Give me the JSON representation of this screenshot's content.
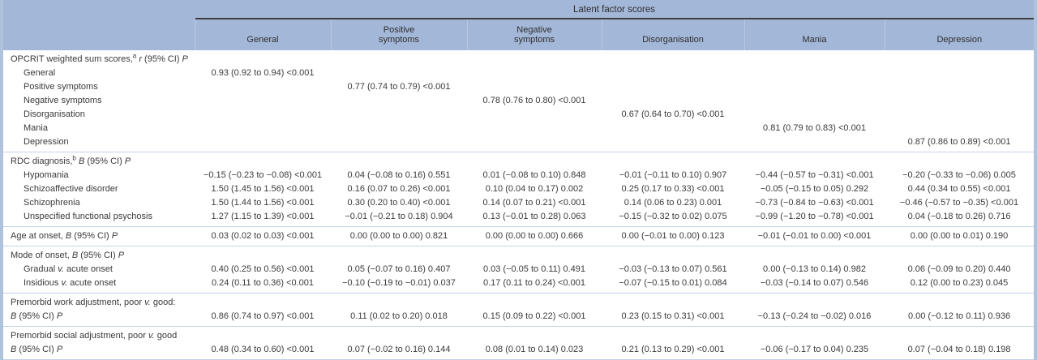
{
  "table": {
    "spanner": "Latent factor scores",
    "columns": [
      "General",
      "Positive\nsymptoms",
      "Negative\nsymptoms",
      "Disorganisation",
      "Mania",
      "Depression"
    ],
    "colors": {
      "header_bg": "#a3b7d8",
      "side_bar": "#b0c3dd",
      "rule_dark": "#3d3d3d",
      "rule_light": "#c2d3e6",
      "text": "#3a3a3a"
    },
    "sections": [
      {
        "label_lines": [
          [
            {
              "t": "OPCRIT weighted sum scores,"
            },
            {
              "t": "a",
              "sup": true
            },
            {
              "t": " "
            },
            {
              "t": "r",
              "i": true
            },
            {
              "t": " (95% CI) "
            },
            {
              "t": "P",
              "i": true
            }
          ]
        ],
        "cells": null,
        "rows": [
          {
            "label": [
              {
                "t": "General"
              }
            ],
            "cells": [
              "0.93 (0.92 to 0.94) <0.001",
              "",
              "",
              "",
              "",
              ""
            ]
          },
          {
            "label": [
              {
                "t": "Positive symptoms"
              }
            ],
            "cells": [
              "",
              "0.77 (0.74 to 0.79) <0.001",
              "",
              "",
              "",
              ""
            ]
          },
          {
            "label": [
              {
                "t": "Negative symptoms"
              }
            ],
            "cells": [
              "",
              "",
              "0.78 (0.76 to 0.80) <0.001",
              "",
              "",
              ""
            ]
          },
          {
            "label": [
              {
                "t": "Disorganisation"
              }
            ],
            "cells": [
              "",
              "",
              "",
              "0.67 (0.64 to 0.70) <0.001",
              "",
              ""
            ]
          },
          {
            "label": [
              {
                "t": "Mania"
              }
            ],
            "cells": [
              "",
              "",
              "",
              "",
              "0.81 (0.79 to 0.83) <0.001",
              ""
            ]
          },
          {
            "label": [
              {
                "t": "Depression"
              }
            ],
            "cells": [
              "",
              "",
              "",
              "",
              "",
              "0.87 (0.86 to 0.89) <0.001"
            ]
          }
        ]
      },
      {
        "label_lines": [
          [
            {
              "t": "RDC diagnosis,"
            },
            {
              "t": "b",
              "sup": true
            },
            {
              "t": " "
            },
            {
              "t": "B",
              "i": true
            },
            {
              "t": " (95% CI) "
            },
            {
              "t": "P",
              "i": true
            }
          ]
        ],
        "cells": null,
        "rows": [
          {
            "label": [
              {
                "t": "Hypomania"
              }
            ],
            "cells": [
              "−0.15 (−0.23 to −0.08) <0.001",
              "0.04 (−0.08 to 0.16) 0.551",
              "0.01 (−0.08 to 0.10) 0.848",
              "−0.01 (−0.11 to 0.10) 0.907",
              "−0.44 (−0.57 to −0.31) <0.001",
              "−0.20 (−0.33 to −0.06) 0.005"
            ]
          },
          {
            "label": [
              {
                "t": "Schizoaffective disorder"
              }
            ],
            "cells": [
              "1.50 (1.45 to 1.56) <0.001",
              "0.16 (0.07 to 0.26) <0.001",
              "0.10 (0.04 to 0.17) 0.002",
              "0.25 (0.17 to 0.33) <0.001",
              "−0.05 (−0.15 to 0.05) 0.292",
              "0.44 (0.34 to 0.55) <0.001"
            ]
          },
          {
            "label": [
              {
                "t": "Schizophrenia"
              }
            ],
            "cells": [
              "1.50 (1.44 to 1.56) <0.001",
              "0.30 (0.20 to 0.40) <0.001",
              "0.14 (0.07 to 0.21) <0.001",
              "0.14 (0.06 to 0.23) 0.001",
              "−0.73 (−0.84 to −0.63) <0.001",
              "−0.46 (−0.57 to −0.35) <0.001"
            ]
          },
          {
            "label": [
              {
                "t": "Unspecified functional psychosis"
              }
            ],
            "cells": [
              "1.27 (1.15 to 1.39) <0.001",
              "−0.01 (−0.21 to 0.18) 0.904",
              "0.13 (−0.01 to 0.28) 0.063",
              "−0.15 (−0.32 to 0.02) 0.075",
              "−0.99 (−1.20 to −0.78) <0.001",
              "0.04 (−0.18 to 0.26) 0.716"
            ]
          }
        ]
      },
      {
        "label_lines": [
          [
            {
              "t": "Age at onset, "
            },
            {
              "t": "B",
              "i": true
            },
            {
              "t": " (95% CI) "
            },
            {
              "t": "P",
              "i": true
            }
          ]
        ],
        "cells": [
          "0.03 (0.02 to 0.03) <0.001",
          "0.00 (0.00 to 0.00) 0.821",
          "0.00 (0.00 to 0.00) 0.666",
          "0.00 (−0.01 to 0.00) 0.123",
          "−0.01 (−0.01 to 0.00) <0.001",
          "0.00 (0.00 to 0.01) 0.190"
        ],
        "rows": []
      },
      {
        "label_lines": [
          [
            {
              "t": "Mode of onset, "
            },
            {
              "t": "B",
              "i": true
            },
            {
              "t": " (95% CI) "
            },
            {
              "t": "P",
              "i": true
            }
          ]
        ],
        "cells": null,
        "rows": [
          {
            "label": [
              {
                "t": "Gradual "
              },
              {
                "t": "v.",
                "i": true
              },
              {
                "t": " acute onset"
              }
            ],
            "cells": [
              "0.40 (0.25 to 0.56) <0.001",
              "0.05 (−0.07 to 0.16) 0.407",
              "0.03 (−0.05 to 0.11) 0.491",
              "−0.03 (−0.13 to 0.07) 0.561",
              "0.00 (−0.13 to 0.14) 0.982",
              "0.06 (−0.09 to 0.20) 0.440"
            ]
          },
          {
            "label": [
              {
                "t": "Insidious "
              },
              {
                "t": "v.",
                "i": true
              },
              {
                "t": " acute onset"
              }
            ],
            "cells": [
              "0.24 (0.11 to 0.36) <0.001",
              "−0.10 (−0.19 to −0.01) 0.037",
              "0.17 (0.11 to 0.24) <0.001",
              "−0.07 (−0.15 to 0.01) 0.084",
              "−0.03 (−0.14 to 0.07) 0.546",
              "0.12 (0.00 to 0.23) 0.045"
            ]
          }
        ]
      },
      {
        "label_lines": [
          [
            {
              "t": "Premorbid work adjustment, poor "
            },
            {
              "t": "v.",
              "i": true
            },
            {
              "t": " good:"
            }
          ],
          [
            {
              "t": "B",
              "i": true
            },
            {
              "t": " (95% CI) "
            },
            {
              "t": "P",
              "i": true
            }
          ]
        ],
        "cells": [
          "0.86 (0.74 to 0.97) <0.001",
          "0.11 (0.02 to 0.20) 0.018",
          "0.15 (0.09 to 0.22) <0.001",
          "0.23 (0.15 to 0.31) <0.001",
          "−0.13 (−0.24 to −0.02) 0.016",
          "0.00 (−0.12 to 0.11) 0.936"
        ],
        "rows": []
      },
      {
        "label_lines": [
          [
            {
              "t": "Premorbid social adjustment, poor "
            },
            {
              "t": "v.",
              "i": true
            },
            {
              "t": " good"
            }
          ],
          [
            {
              "t": "B",
              "i": true
            },
            {
              "t": " (95% CI) "
            },
            {
              "t": "P",
              "i": true
            }
          ]
        ],
        "cells": [
          "0.48 (0.34 to 0.60) <0.001",
          "0.07 (−0.02 to 0.16) 0.144",
          "0.08 (0.01 to 0.14) 0.023",
          "0.21 (0.13 to 0.29) <0.001",
          "−0.06 (−0.17 to 0.04) 0.235",
          "0.07 (−0.04 to 0.18) 0.198"
        ],
        "rows": []
      }
    ]
  }
}
